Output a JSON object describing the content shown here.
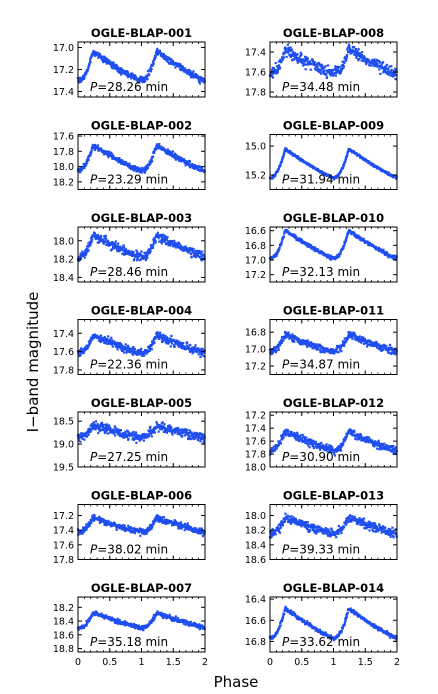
{
  "figure": {
    "xlabel": "Phase",
    "ylabel": "I−band magnitude"
  },
  "colors": {
    "points": "#1f4ef0",
    "axes": "#000000"
  },
  "chart_data": [
    {
      "type": "scatter",
      "title": "OGLE-BLAP-001",
      "period_label": "P=28.26 min",
      "amp": 0.26,
      "noise": 0.022,
      "base": 17.3,
      "ylim": [
        17.45,
        16.95
      ],
      "yticks": [
        17.0,
        17.2,
        17.4
      ],
      "xlim": [
        0,
        2
      ],
      "xticks": [
        0,
        0.5,
        1,
        1.5,
        2
      ]
    },
    {
      "type": "scatter",
      "title": "OGLE-BLAP-002",
      "period_label": "P=23.29 min",
      "amp": 0.34,
      "noise": 0.025,
      "base": 18.06,
      "ylim": [
        18.3,
        17.58
      ],
      "yticks": [
        17.6,
        17.8,
        18.0,
        18.2
      ],
      "xlim": [
        0,
        2
      ],
      "xticks": [
        0,
        0.5,
        1,
        1.5,
        2
      ]
    },
    {
      "type": "scatter",
      "title": "OGLE-BLAP-003",
      "period_label": "P=28.46 min",
      "amp": 0.24,
      "noise": 0.035,
      "base": 18.18,
      "ylim": [
        18.45,
        17.85
      ],
      "yticks": [
        18.0,
        18.2,
        18.4
      ],
      "xlim": [
        0,
        2
      ],
      "xticks": [
        0,
        0.5,
        1,
        1.5,
        2
      ]
    },
    {
      "type": "scatter",
      "title": "OGLE-BLAP-004",
      "period_label": "P=22.36 min",
      "amp": 0.2,
      "noise": 0.03,
      "base": 17.62,
      "ylim": [
        17.85,
        17.25
      ],
      "yticks": [
        17.4,
        17.6,
        17.8
      ],
      "xlim": [
        0,
        2
      ],
      "xticks": [
        0,
        0.5,
        1,
        1.5,
        2
      ]
    },
    {
      "type": "scatter",
      "title": "OGLE-BLAP-005",
      "period_label": "P=27.25 min",
      "amp": 0.25,
      "noise": 0.07,
      "base": 18.85,
      "ylim": [
        19.5,
        18.3
      ],
      "yticks": [
        18.5,
        19.0,
        19.5
      ],
      "xlim": [
        0,
        2
      ],
      "xticks": [
        0,
        0.5,
        1,
        1.5,
        2
      ]
    },
    {
      "type": "scatter",
      "title": "OGLE-BLAP-006",
      "period_label": "P=38.02 min",
      "amp": 0.2,
      "noise": 0.03,
      "base": 17.43,
      "ylim": [
        17.8,
        17.05
      ],
      "yticks": [
        17.2,
        17.4,
        17.6,
        17.8
      ],
      "xlim": [
        0,
        2
      ],
      "xticks": [
        0,
        0.5,
        1,
        1.5,
        2
      ]
    },
    {
      "type": "scatter",
      "title": "OGLE-BLAP-007",
      "period_label": "P=35.18 min",
      "amp": 0.22,
      "noise": 0.022,
      "base": 18.5,
      "ylim": [
        18.85,
        18.05
      ],
      "yticks": [
        18.2,
        18.4,
        18.6,
        18.8
      ],
      "xlim": [
        0,
        2
      ],
      "xticks": [
        0,
        0.5,
        1,
        1.5,
        2
      ]
    },
    {
      "type": "scatter",
      "title": "OGLE-BLAP-008",
      "period_label": "P=34.48 min",
      "amp": 0.24,
      "noise": 0.04,
      "base": 17.62,
      "ylim": [
        17.85,
        17.3
      ],
      "yticks": [
        17.4,
        17.6,
        17.8
      ],
      "xlim": [
        0,
        2
      ],
      "xticks": [
        0,
        0.5,
        1,
        1.5,
        2
      ]
    },
    {
      "type": "scatter",
      "title": "OGLE-BLAP-009",
      "period_label": "P=31.94 min",
      "amp": 0.2,
      "noise": 0.006,
      "base": 15.22,
      "ylim": [
        15.3,
        14.92
      ],
      "yticks": [
        15.0,
        15.2
      ],
      "xlim": [
        0,
        2
      ],
      "xticks": [
        0,
        0.5,
        1,
        1.5,
        2
      ]
    },
    {
      "type": "scatter",
      "title": "OGLE-BLAP-010",
      "period_label": "P=32.13 min",
      "amp": 0.38,
      "noise": 0.018,
      "base": 16.98,
      "ylim": [
        17.3,
        16.55
      ],
      "yticks": [
        16.6,
        16.8,
        17.0,
        17.2
      ],
      "xlim": [
        0,
        2
      ],
      "xticks": [
        0,
        0.5,
        1,
        1.5,
        2
      ]
    },
    {
      "type": "scatter",
      "title": "OGLE-BLAP-011",
      "period_label": "P=34.87 min",
      "amp": 0.2,
      "noise": 0.03,
      "base": 17.03,
      "ylim": [
        17.3,
        16.65
      ],
      "yticks": [
        16.8,
        17.0,
        17.2
      ],
      "xlim": [
        0,
        2
      ],
      "xticks": [
        0,
        0.5,
        1,
        1.5,
        2
      ]
    },
    {
      "type": "scatter",
      "title": "OGLE-BLAP-012",
      "period_label": "P=30.90 min",
      "amp": 0.3,
      "noise": 0.04,
      "base": 17.75,
      "ylim": [
        18.0,
        17.15
      ],
      "yticks": [
        17.2,
        17.4,
        17.6,
        17.8,
        18.0
      ],
      "xlim": [
        0,
        2
      ],
      "xticks": [
        0,
        0.5,
        1,
        1.5,
        2
      ]
    },
    {
      "type": "scatter",
      "title": "OGLE-BLAP-013",
      "period_label": "P=39.33 min",
      "amp": 0.22,
      "noise": 0.04,
      "base": 18.25,
      "ylim": [
        18.6,
        17.85
      ],
      "yticks": [
        18.0,
        18.2,
        18.4,
        18.6
      ],
      "xlim": [
        0,
        2
      ],
      "xticks": [
        0,
        0.5,
        1,
        1.5,
        2
      ]
    },
    {
      "type": "scatter",
      "title": "OGLE-BLAP-014",
      "period_label": "P=33.62 min",
      "amp": 0.28,
      "noise": 0.012,
      "base": 16.77,
      "ylim": [
        16.9,
        16.38
      ],
      "yticks": [
        16.4,
        16.6,
        16.8
      ],
      "xlim": [
        0,
        2
      ],
      "xticks": [
        0,
        0.5,
        1,
        1.5,
        2
      ]
    }
  ]
}
